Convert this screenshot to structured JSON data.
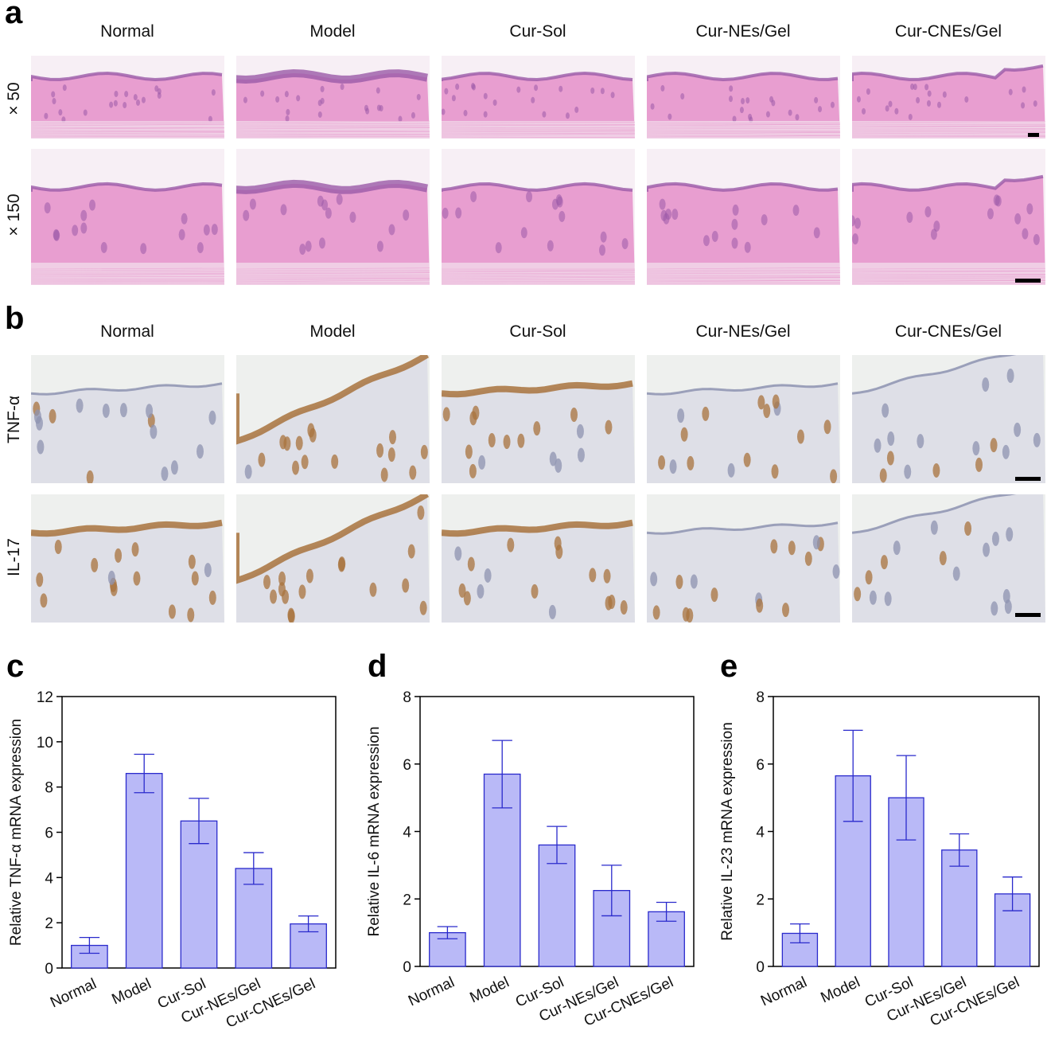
{
  "panels": {
    "a": {
      "letter": "a",
      "columns": [
        "Normal",
        "Model",
        "Cur-Sol",
        "Cur-NEs/Gel",
        "Cur-CNEs/Gel"
      ],
      "rows": [
        "× 50",
        "× 150"
      ]
    },
    "b": {
      "letter": "b",
      "columns": [
        "Normal",
        "Model",
        "Cur-Sol",
        "Cur-NEs/Gel",
        "Cur-CNEs/Gel"
      ],
      "rows": [
        "TNF-α",
        "IL-17"
      ]
    }
  },
  "colors": {
    "he_background": "#f7eff5",
    "he_tissue": "#e58fc9",
    "he_epidermis": "#9a5aa8",
    "ihc_background": "#eef0ee",
    "ihc_tissue": "#dcdde6",
    "ihc_stain": "#a8733d",
    "bar_fill": "#b9b9f7",
    "bar_stroke": "#2a2acc"
  },
  "chart_data": [
    {
      "letter": "c",
      "type": "bar",
      "categories": [
        "Normal",
        "Model",
        "Cur-Sol",
        "Cur-NEs/Gel",
        "Cur-CNEs/Gel"
      ],
      "values": [
        1.0,
        8.6,
        6.5,
        4.4,
        1.95
      ],
      "errors": [
        0.35,
        0.85,
        1.0,
        0.7,
        0.35
      ],
      "ylabel": "Relative TNF-α mRNA expression",
      "ylim": [
        0,
        12
      ],
      "yticks": [
        0,
        2,
        4,
        6,
        8,
        10,
        12
      ]
    },
    {
      "letter": "d",
      "type": "bar",
      "categories": [
        "Normal",
        "Model",
        "Cur-Sol",
        "Cur-NEs/Gel",
        "Cur-CNEs/Gel"
      ],
      "values": [
        1.0,
        5.7,
        3.6,
        2.25,
        1.62
      ],
      "errors": [
        0.18,
        1.0,
        0.55,
        0.75,
        0.28
      ],
      "ylabel": "Relative IL-6 mRNA expression",
      "ylim": [
        0,
        8
      ],
      "yticks": [
        0,
        2,
        4,
        6,
        8
      ]
    },
    {
      "letter": "e",
      "type": "bar",
      "categories": [
        "Normal",
        "Model",
        "Cur-Sol",
        "Cur-NEs/Gel",
        "Cur-CNEs/Gel"
      ],
      "values": [
        0.98,
        5.65,
        5.0,
        3.45,
        2.15
      ],
      "errors": [
        0.28,
        1.35,
        1.25,
        0.48,
        0.5
      ],
      "ylabel": "Relative IL-23  mRNA expression",
      "ylim": [
        0,
        8
      ],
      "yticks": [
        0,
        2,
        4,
        6,
        8
      ]
    }
  ]
}
